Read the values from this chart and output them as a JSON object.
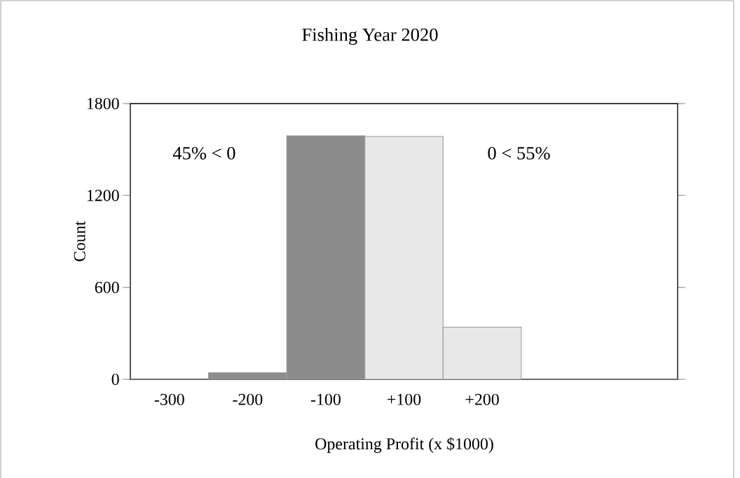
{
  "chart_data": {
    "type": "bar",
    "title": "Fishing Year 2020",
    "xlabel": "Operating Profit (x $1000)",
    "ylabel": "Count",
    "categories": [
      "-300",
      "-200",
      "-100",
      "+100",
      "+200",
      null,
      null
    ],
    "values": [
      0,
      43,
      1590,
      1585,
      340,
      0,
      0
    ],
    "colors": [
      "#8c8c8c",
      "#8c8c8c",
      "#8c8c8c",
      "#e8e8e8",
      "#e8e8e8",
      "#e8e8e8",
      "#e8e8e8"
    ],
    "ylim": [
      0,
      1800
    ],
    "yticks": [
      0,
      600,
      1200,
      1800
    ],
    "annotations": [
      "45% < 0",
      "0 < 55%"
    ]
  }
}
